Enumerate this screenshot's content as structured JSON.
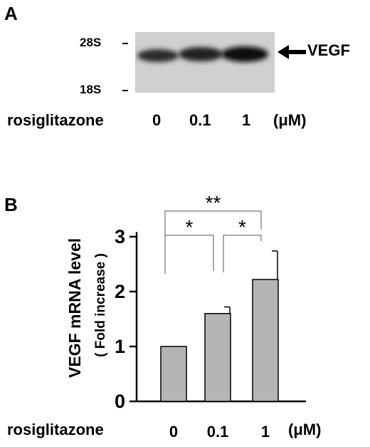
{
  "panel_a": {
    "letter": "A",
    "markers": [
      "28S",
      "18S"
    ],
    "band_label": "VEGF",
    "treatment_label": "rosiglitazone",
    "doses": [
      "0",
      "0.1",
      "1"
    ],
    "unit": "(μM)"
  },
  "panel_b": {
    "letter": "B",
    "ylabel_line1": "VEGF mRNA level",
    "ylabel_line2": "( Fold increase )",
    "treatment_label": "rosiglitazone",
    "unit": "(μM)"
  },
  "chart_data": {
    "type": "bar",
    "categories": [
      "0",
      "0.1",
      "1"
    ],
    "values": [
      1.0,
      1.6,
      2.22
    ],
    "errors": [
      0,
      0.12,
      0.52
    ],
    "yticks": [
      "0",
      "1",
      "2",
      "3"
    ],
    "ylim": [
      0,
      3.5
    ],
    "ylabel": "VEGF mRNA level ( Fold increase )",
    "xlabel": "rosiglitazone (μM)",
    "significance": [
      {
        "from": 0,
        "to": 2,
        "label": "**"
      },
      {
        "from": 0,
        "to": 1,
        "label": "*"
      },
      {
        "from": 1,
        "to": 2,
        "label": "*"
      }
    ],
    "bar_color": "#b5b5b5",
    "grid": false
  }
}
